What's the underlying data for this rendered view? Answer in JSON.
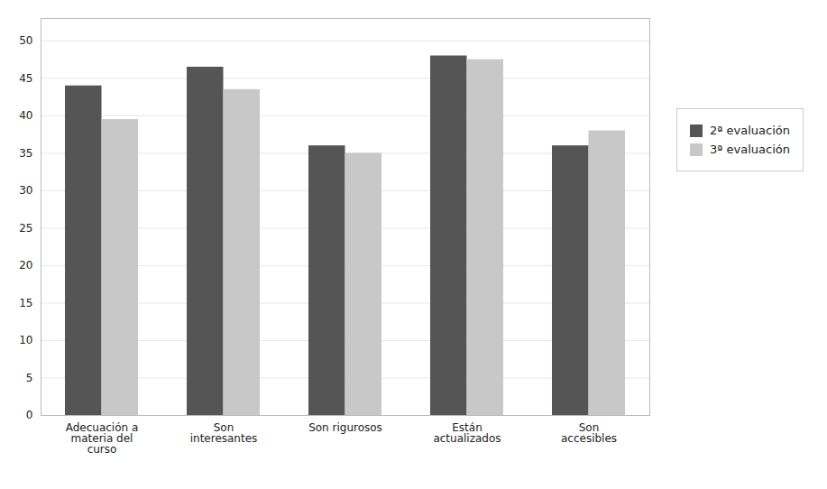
{
  "chart_data": {
    "type": "bar",
    "categories": [
      "Adecuación a\nmateria del\ncurso",
      "Son\ninteresantes",
      "Son rigurosos",
      "Están\nactualizados",
      "Son\naccesibles"
    ],
    "series": [
      {
        "name": "2ª evaluación",
        "color": "#555555",
        "values": [
          44,
          46.5,
          36,
          48,
          36
        ]
      },
      {
        "name": "3ª evaluación",
        "color": "#c8c8c8",
        "values": [
          39.5,
          43.5,
          35,
          47.5,
          38
        ]
      }
    ],
    "ylim": [
      0,
      53
    ],
    "yticks": [
      0,
      5,
      10,
      15,
      20,
      25,
      30,
      35,
      40,
      45,
      50
    ],
    "grid": true,
    "legend": "right"
  }
}
